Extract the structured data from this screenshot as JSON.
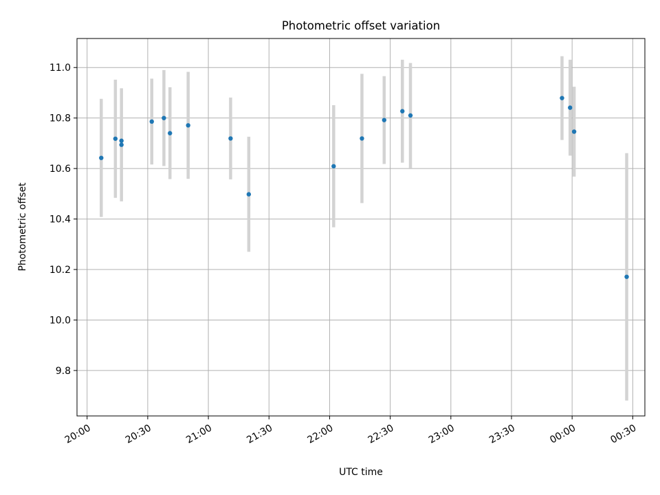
{
  "chart_data": {
    "type": "scatter",
    "title": "Photometric offset variation",
    "xlabel": "UTC time",
    "ylabel": "Photometric offset",
    "x_tick_labels": [
      "20:00",
      "20:30",
      "21:00",
      "21:30",
      "22:00",
      "22:30",
      "23:00",
      "23:30",
      "00:00",
      "00:30"
    ],
    "y_tick_labels": [
      "9.8",
      "10.0",
      "10.2",
      "10.4",
      "10.6",
      "10.8",
      "11.0"
    ],
    "grid": true,
    "colors": {
      "point": "#1f77b4",
      "errorbar": "#d3d3d3",
      "grid": "#b0b0b0",
      "axes": "#000000"
    },
    "series": [
      {
        "points": [
          {
            "x": "20:07",
            "y": 10.642,
            "err": 0.234
          },
          {
            "x": "20:14",
            "y": 10.718,
            "err": 0.234
          },
          {
            "x": "20:17",
            "y": 10.694,
            "err": 0.224
          },
          {
            "x": "20:17",
            "y": 10.71,
            "err": 0.0
          },
          {
            "x": "20:32",
            "y": 10.786,
            "err": 0.17
          },
          {
            "x": "20:38",
            "y": 10.8,
            "err": 0.19
          },
          {
            "x": "20:41",
            "y": 10.74,
            "err": 0.182
          },
          {
            "x": "20:50",
            "y": 10.771,
            "err": 0.212
          },
          {
            "x": "21:11",
            "y": 10.719,
            "err": 0.162
          },
          {
            "x": "21:20",
            "y": 10.498,
            "err": 0.228
          },
          {
            "x": "22:02",
            "y": 10.609,
            "err": 0.242
          },
          {
            "x": "22:16",
            "y": 10.719,
            "err": 0.256
          },
          {
            "x": "22:27",
            "y": 10.792,
            "err": 0.174
          },
          {
            "x": "22:36",
            "y": 10.827,
            "err": 0.204
          },
          {
            "x": "22:40",
            "y": 10.81,
            "err": 0.208
          },
          {
            "x": "23:55",
            "y": 10.879,
            "err": 0.166
          },
          {
            "x": "23:59",
            "y": 10.841,
            "err": 0.19
          },
          {
            "x": "00:01",
            "y": 10.746,
            "err": 0.178
          },
          {
            "x": "00:27",
            "y": 10.171,
            "err": 0.49
          }
        ]
      }
    ]
  }
}
